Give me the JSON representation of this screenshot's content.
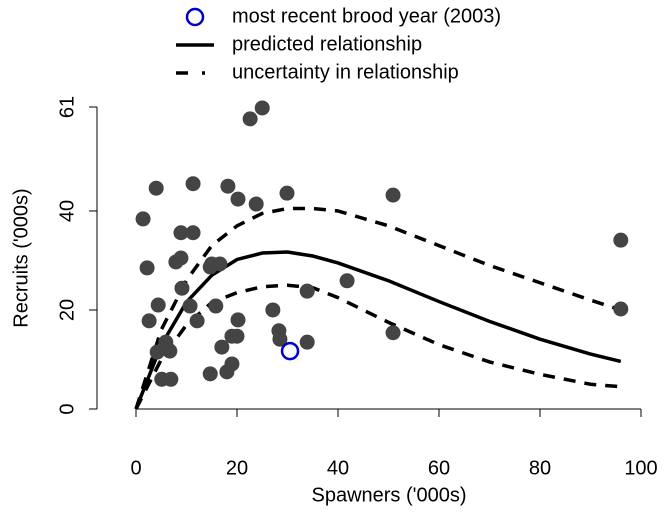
{
  "chart_data": {
    "type": "scatter",
    "x_label": "Spawners ('000s)",
    "y_label": "Recruits ('000s)",
    "xlim": [
      0,
      100
    ],
    "ylim": [
      0,
      61
    ],
    "xticks": [
      0,
      20,
      40,
      60,
      80,
      100
    ],
    "yticks": [
      0,
      20,
      40,
      61
    ],
    "series": [
      {
        "style": "points",
        "color": "#444444",
        "x": [
          1.4,
          2.2,
          2.6,
          4.0,
          4.4,
          4.2,
          5.1,
          6.9,
          6.7,
          5.9,
          7.9,
          8.9,
          8.9,
          11.3,
          11.3,
          9.1,
          10.7,
          12.1,
          14.7,
          15.0,
          16.6,
          15.8,
          14.7,
          17.0,
          18.0,
          19.0,
          19.0,
          20.0,
          20.2,
          18.2,
          20.2,
          23.8,
          22.6,
          25.0,
          27.1,
          28.3,
          28.5,
          29.9,
          33.9,
          33.9,
          41.8,
          50.9,
          50.9,
          96.0,
          96.0
        ],
        "values": [
          38.4,
          28.5,
          17.8,
          44.6,
          21,
          11.5,
          6,
          6,
          11.7,
          13.5,
          29.7,
          30.5,
          35.6,
          35.6,
          45.5,
          24.4,
          20.8,
          17.8,
          28.7,
          29.3,
          29.3,
          20.8,
          7.1,
          12.5,
          7.5,
          9.1,
          14.7,
          14.7,
          18,
          45,
          42.4,
          41.4,
          58.6,
          60.8,
          20,
          15.8,
          14.1,
          43.6,
          23.8,
          13.5,
          25.9,
          43.2,
          15.4,
          34.1,
          20.2
        ]
      },
      {
        "name": "most recent brood year (2003)",
        "style": "open-points",
        "color": "#0000cc",
        "x": [
          30.5
        ],
        "values": [
          11.7
        ]
      },
      {
        "name": "predicted relationship",
        "style": "line",
        "dashed": false,
        "color": "#000000",
        "x": [
          0,
          5,
          10,
          15,
          20,
          25,
          30,
          35,
          40,
          50,
          60,
          70,
          80,
          90,
          96
        ],
        "values": [
          0,
          12.9,
          21.6,
          27.0,
          30.2,
          31.5,
          31.7,
          30.9,
          29.5,
          25.9,
          21.7,
          17.7,
          14.1,
          11.1,
          9.6
        ]
      },
      {
        "name": "uncertainty in relationship",
        "style": "line",
        "dashed": true,
        "color": "#000000",
        "x": [
          0,
          5,
          10,
          15,
          20,
          25,
          30,
          35,
          40,
          50,
          60,
          70,
          80,
          90,
          96
        ],
        "values": [
          0,
          16,
          26,
          33,
          37,
          39.5,
          40.5,
          40.5,
          40,
          37,
          33,
          29,
          25.5,
          22,
          20
        ]
      },
      {
        "style": "line",
        "dashed": true,
        "color": "#000000",
        "x": [
          0,
          5,
          10,
          15,
          20,
          25,
          30,
          35,
          40,
          50,
          60,
          70,
          80,
          90,
          96
        ],
        "values": [
          0,
          10,
          17,
          21.5,
          23.5,
          24.7,
          25,
          24.5,
          22.5,
          17.5,
          13,
          9.5,
          7,
          5,
          4.5
        ]
      }
    ]
  }
}
